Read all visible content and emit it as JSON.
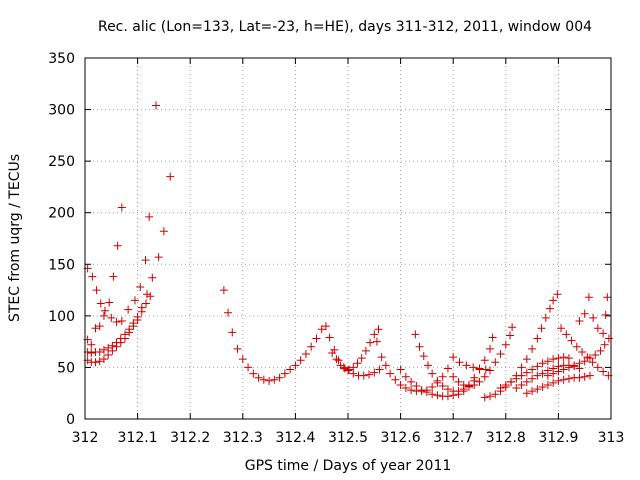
{
  "chart_data": {
    "type": "scatter",
    "title": "Rec. alic (Lon=133, Lat=-23, h=HE), days 311-312, 2011, window 004",
    "xlabel": "GPS time / Days of year 2011",
    "ylabel": "STEC from uqrg / TECUs",
    "xlim": [
      312,
      313
    ],
    "ylim": [
      0,
      350
    ],
    "x_ticks": [
      "312",
      "312.1",
      "312.2",
      "312.3",
      "312.4",
      "312.5",
      "312.6",
      "312.7",
      "312.8",
      "312.9",
      "313"
    ],
    "y_ticks": [
      "0",
      "50",
      "100",
      "150",
      "200",
      "250",
      "300",
      "350"
    ],
    "grid": true,
    "legend": "none",
    "marker": "plus",
    "color": "#cc0000",
    "series": [
      {
        "points": [
          [
            312.005,
            146
          ],
          [
            312.014,
            138
          ],
          [
            312.022,
            125
          ],
          [
            312.03,
            112
          ],
          [
            312.038,
            105
          ],
          [
            312.05,
            98
          ],
          [
            312.06,
            94
          ],
          [
            312.07,
            95
          ],
          [
            312.082,
            106
          ],
          [
            312.095,
            115
          ],
          [
            312.105,
            128
          ],
          [
            312.115,
            154
          ],
          [
            312.122,
            196
          ],
          [
            312.135,
            304
          ],
          [
            312.005,
            77
          ],
          [
            312.012,
            72
          ],
          [
            312.02,
            88
          ],
          [
            312.028,
            90
          ],
          [
            312.036,
            100
          ],
          [
            312.046,
            113
          ],
          [
            312.054,
            138
          ],
          [
            312.062,
            168
          ],
          [
            312.07,
            205
          ],
          [
            312.005,
            65
          ],
          [
            312.012,
            64
          ],
          [
            312.02,
            65
          ],
          [
            312.028,
            65
          ],
          [
            312.036,
            67
          ],
          [
            312.044,
            69
          ],
          [
            312.052,
            71
          ],
          [
            312.06,
            74
          ],
          [
            312.068,
            78
          ],
          [
            312.076,
            82
          ],
          [
            312.084,
            87
          ],
          [
            312.092,
            93
          ],
          [
            312.1,
            99
          ],
          [
            312.108,
            108
          ],
          [
            312.118,
            121
          ],
          [
            312.128,
            137
          ],
          [
            312.14,
            157
          ],
          [
            312.15,
            182
          ],
          [
            312.162,
            235
          ],
          [
            312.005,
            57
          ],
          [
            312.012,
            55
          ],
          [
            312.02,
            55
          ],
          [
            312.028,
            56
          ],
          [
            312.036,
            58
          ],
          [
            312.044,
            62
          ],
          [
            312.052,
            66
          ],
          [
            312.06,
            70
          ],
          [
            312.068,
            74
          ],
          [
            312.076,
            78
          ],
          [
            312.084,
            84
          ],
          [
            312.092,
            90
          ],
          [
            312.1,
            96
          ],
          [
            312.108,
            104
          ],
          [
            312.116,
            112
          ],
          [
            312.124,
            119
          ],
          [
            312.264,
            125
          ],
          [
            312.272,
            103
          ],
          [
            312.28,
            84
          ],
          [
            312.29,
            68
          ],
          [
            312.3,
            58
          ],
          [
            312.31,
            50
          ],
          [
            312.32,
            44
          ],
          [
            312.33,
            40
          ],
          [
            312.34,
            38
          ],
          [
            312.35,
            37
          ],
          [
            312.36,
            38
          ],
          [
            312.37,
            40
          ],
          [
            312.38,
            44
          ],
          [
            312.39,
            48
          ],
          [
            312.4,
            52
          ],
          [
            312.41,
            57
          ],
          [
            312.42,
            63
          ],
          [
            312.43,
            70
          ],
          [
            312.44,
            78
          ],
          [
            312.45,
            87
          ],
          [
            312.458,
            90
          ],
          [
            312.47,
            64
          ],
          [
            312.478,
            58
          ],
          [
            312.486,
            52
          ],
          [
            312.494,
            49
          ],
          [
            312.502,
            48
          ],
          [
            312.51,
            50
          ],
          [
            312.518,
            54
          ],
          [
            312.526,
            59
          ],
          [
            312.534,
            66
          ],
          [
            312.542,
            74
          ],
          [
            312.55,
            82
          ],
          [
            312.558,
            87
          ],
          [
            312.465,
            79
          ],
          [
            312.474,
            67
          ],
          [
            312.482,
            57
          ],
          [
            312.492,
            50
          ],
          [
            312.5,
            47
          ],
          [
            312.51,
            44
          ],
          [
            312.52,
            42
          ],
          [
            312.53,
            42
          ],
          [
            312.54,
            43
          ],
          [
            312.55,
            45
          ],
          [
            312.56,
            48
          ],
          [
            312.555,
            75
          ],
          [
            312.564,
            60
          ],
          [
            312.572,
            52
          ],
          [
            312.58,
            44
          ],
          [
            312.59,
            38
          ],
          [
            312.6,
            33
          ],
          [
            312.61,
            30
          ],
          [
            312.62,
            28
          ],
          [
            312.63,
            27
          ],
          [
            312.64,
            27
          ],
          [
            312.65,
            28
          ],
          [
            312.66,
            31
          ],
          [
            312.67,
            35
          ],
          [
            312.68,
            41
          ],
          [
            312.69,
            49
          ],
          [
            312.6,
            48
          ],
          [
            312.61,
            41
          ],
          [
            312.62,
            36
          ],
          [
            312.63,
            32
          ],
          [
            312.64,
            28
          ],
          [
            312.65,
            26
          ],
          [
            312.66,
            24
          ],
          [
            312.67,
            23
          ],
          [
            312.68,
            22
          ],
          [
            312.69,
            22
          ],
          [
            312.7,
            23
          ],
          [
            312.71,
            24
          ],
          [
            312.72,
            27
          ],
          [
            312.73,
            31
          ],
          [
            312.74,
            37
          ],
          [
            312.628,
            82
          ],
          [
            312.636,
            70
          ],
          [
            312.644,
            61
          ],
          [
            312.652,
            52
          ],
          [
            312.66,
            44
          ],
          [
            312.67,
            37
          ],
          [
            312.68,
            32
          ],
          [
            312.69,
            29
          ],
          [
            312.7,
            27
          ],
          [
            312.71,
            27
          ],
          [
            312.72,
            29
          ],
          [
            312.73,
            33
          ],
          [
            312.74,
            40
          ],
          [
            312.75,
            48
          ],
          [
            312.76,
            57
          ],
          [
            312.77,
            68
          ],
          [
            312.775,
            79
          ],
          [
            312.7,
            41
          ],
          [
            312.71,
            36
          ],
          [
            312.72,
            33
          ],
          [
            312.73,
            32
          ],
          [
            312.74,
            33
          ],
          [
            312.75,
            36
          ],
          [
            312.76,
            41
          ],
          [
            312.77,
            47
          ],
          [
            312.78,
            55
          ],
          [
            312.79,
            63
          ],
          [
            312.8,
            72
          ],
          [
            312.808,
            81
          ],
          [
            312.812,
            89
          ],
          [
            312.76,
            21
          ],
          [
            312.77,
            22
          ],
          [
            312.78,
            24
          ],
          [
            312.79,
            27
          ],
          [
            312.8,
            31
          ],
          [
            312.81,
            36
          ],
          [
            312.82,
            42
          ],
          [
            312.83,
            50
          ],
          [
            312.84,
            58
          ],
          [
            312.85,
            68
          ],
          [
            312.86,
            78
          ],
          [
            312.868,
            88
          ],
          [
            312.876,
            98
          ],
          [
            312.884,
            107
          ],
          [
            312.89,
            115
          ],
          [
            312.898,
            121
          ],
          [
            312.79,
            30
          ],
          [
            312.8,
            33
          ],
          [
            312.81,
            36
          ],
          [
            312.82,
            39
          ],
          [
            312.83,
            42
          ],
          [
            312.84,
            45
          ],
          [
            312.85,
            48
          ],
          [
            312.86,
            51
          ],
          [
            312.87,
            54
          ],
          [
            312.88,
            56
          ],
          [
            312.89,
            58
          ],
          [
            312.9,
            59
          ],
          [
            312.91,
            60
          ],
          [
            312.92,
            59
          ],
          [
            312.82,
            30
          ],
          [
            312.83,
            33
          ],
          [
            312.84,
            36
          ],
          [
            312.85,
            39
          ],
          [
            312.86,
            42
          ],
          [
            312.87,
            44
          ],
          [
            312.88,
            47
          ],
          [
            312.89,
            49
          ],
          [
            312.9,
            51
          ],
          [
            312.91,
            52
          ],
          [
            312.92,
            52
          ],
          [
            312.93,
            51
          ],
          [
            312.94,
            49
          ],
          [
            312.84,
            25
          ],
          [
            312.85,
            27
          ],
          [
            312.86,
            29
          ],
          [
            312.87,
            31
          ],
          [
            312.88,
            33
          ],
          [
            312.89,
            35
          ],
          [
            312.9,
            37
          ],
          [
            312.91,
            38
          ],
          [
            312.92,
            39
          ],
          [
            312.93,
            40
          ],
          [
            312.94,
            40
          ],
          [
            312.95,
            41
          ],
          [
            312.96,
            42
          ],
          [
            312.88,
            42
          ],
          [
            312.89,
            44
          ],
          [
            312.9,
            46
          ],
          [
            312.91,
            48
          ],
          [
            312.92,
            50
          ],
          [
            312.93,
            52
          ],
          [
            312.94,
            54
          ],
          [
            312.95,
            56
          ],
          [
            312.96,
            59
          ],
          [
            312.97,
            62
          ],
          [
            312.98,
            66
          ],
          [
            312.988,
            72
          ],
          [
            312.996,
            78
          ],
          [
            312.94,
            95
          ],
          [
            312.95,
            102
          ],
          [
            312.958,
            118
          ],
          [
            312.966,
            98
          ],
          [
            312.975,
            88
          ],
          [
            312.985,
            83
          ],
          [
            312.99,
            101
          ],
          [
            312.993,
            118
          ],
          [
            312.7,
            60
          ],
          [
            312.712,
            55
          ],
          [
            312.725,
            52
          ],
          [
            312.738,
            50
          ],
          [
            312.75,
            49
          ],
          [
            312.762,
            48
          ],
          [
            312.905,
            88
          ],
          [
            312.915,
            82
          ],
          [
            312.925,
            76
          ],
          [
            312.935,
            70
          ],
          [
            312.945,
            65
          ],
          [
            312.955,
            60
          ],
          [
            312.965,
            55
          ],
          [
            312.975,
            50
          ],
          [
            312.985,
            46
          ],
          [
            312.995,
            42
          ]
        ]
      }
    ]
  }
}
